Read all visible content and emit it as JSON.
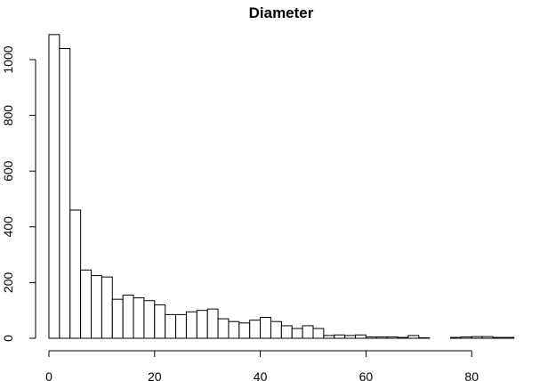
{
  "chart_data": {
    "type": "bar",
    "title": "Diameter",
    "xlabel": "",
    "ylabel": "",
    "grid": false,
    "bin_width": 2,
    "bin_start": 0,
    "xlim": [
      0,
      88
    ],
    "ylim": [
      0,
      1090
    ],
    "x_ticks": [
      0,
      20,
      40,
      60,
      80
    ],
    "y_ticks": [
      0,
      200,
      400,
      600,
      800,
      1000
    ],
    "values": [
      1090,
      1040,
      460,
      245,
      225,
      220,
      140,
      155,
      145,
      135,
      120,
      85,
      85,
      95,
      100,
      105,
      70,
      60,
      55,
      65,
      75,
      60,
      45,
      35,
      45,
      35,
      10,
      12,
      10,
      12,
      5,
      5,
      5,
      3,
      10,
      2,
      0,
      0,
      3,
      5,
      6,
      6,
      3,
      3
    ]
  }
}
